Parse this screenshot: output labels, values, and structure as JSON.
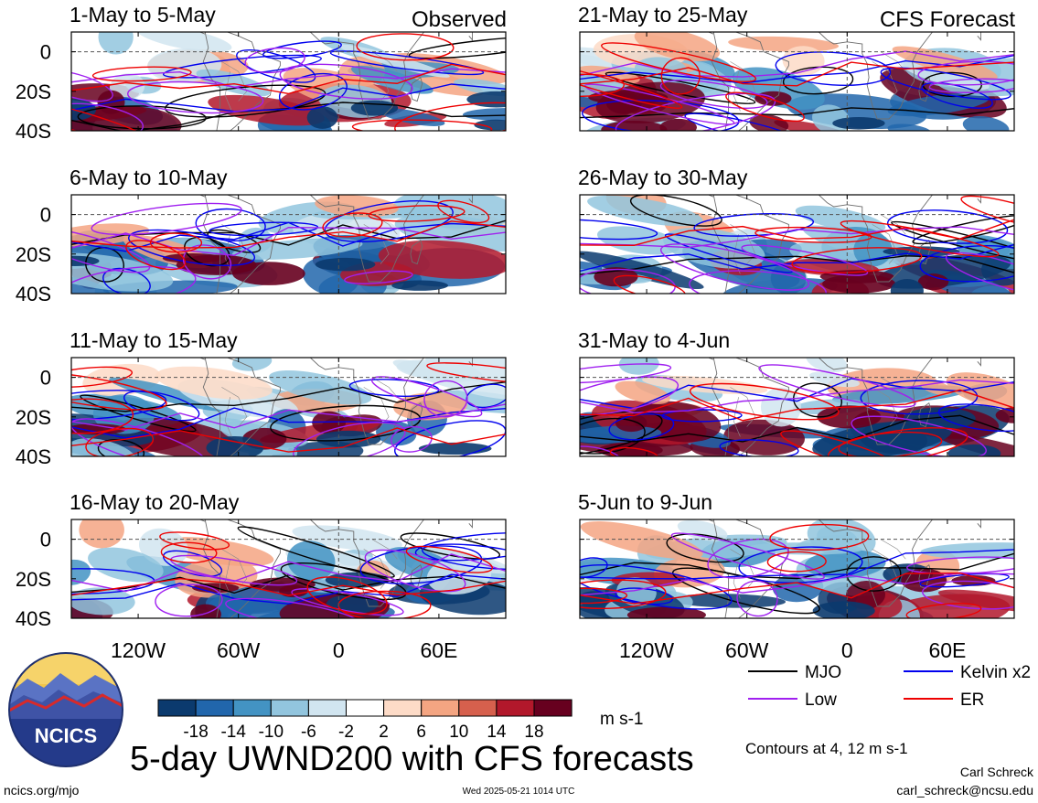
{
  "header": {
    "left_label": "Observed",
    "right_label": "CFS Forecast"
  },
  "axes": {
    "y_ticks": [
      "0",
      "20S",
      "40S"
    ],
    "x_ticks_left": [
      "120W",
      "60W",
      "0",
      "60E"
    ],
    "x_ticks_right": [
      "120W",
      "60W",
      "0",
      "60E"
    ]
  },
  "legend": {
    "items": [
      {
        "label": "MJO",
        "color": "#000000"
      },
      {
        "label": "Kelvin x2",
        "color": "#0000ee"
      },
      {
        "label": "Low",
        "color": "#a020f0"
      },
      {
        "label": "ER",
        "color": "#ee0000"
      }
    ],
    "contours_note": "Contours at 4, 12 m s-1"
  },
  "colorbar": {
    "labels": [
      "-18",
      "-14",
      "-10",
      "-6",
      "-2",
      "2",
      "6",
      "10",
      "14",
      "18"
    ],
    "colors": [
      "#0b3a6e",
      "#2166ac",
      "#4393c3",
      "#92c5de",
      "#d1e5f0",
      "#ffffff",
      "#fddbc7",
      "#f4a582",
      "#d6604d",
      "#b2182b",
      "#67001f"
    ],
    "unit": "m s-1"
  },
  "title": "5-day UWND200 with CFS forecasts",
  "logo": {
    "text": "NCICS"
  },
  "footer": {
    "url": "ncics.org/mjo",
    "timestamp": "Wed 2025-05-21 1014 UTC",
    "author": "Carl Schreck",
    "email": "carl_schreck@ncsu.edu"
  },
  "chart_data": {
    "type": "heatmap",
    "variable": "UWND200",
    "unit": "m s-1",
    "x_range": [
      "160W",
      "100E"
    ],
    "y_range": [
      "10N",
      "40S"
    ],
    "panels": [
      {
        "period": "1-May to 5-May",
        "source": "Observed"
      },
      {
        "period": "6-May to 10-May",
        "source": "Observed"
      },
      {
        "period": "11-May to 15-May",
        "source": "Observed"
      },
      {
        "period": "16-May to 20-May",
        "source": "Observed"
      },
      {
        "period": "21-May to 25-May",
        "source": "CFS Forecast"
      },
      {
        "period": "26-May to 30-May",
        "source": "CFS Forecast"
      },
      {
        "period": "31-May to 4-Jun",
        "source": "CFS Forecast"
      },
      {
        "period": "5-Jun to 9-Jun",
        "source": "CFS Forecast"
      }
    ]
  }
}
